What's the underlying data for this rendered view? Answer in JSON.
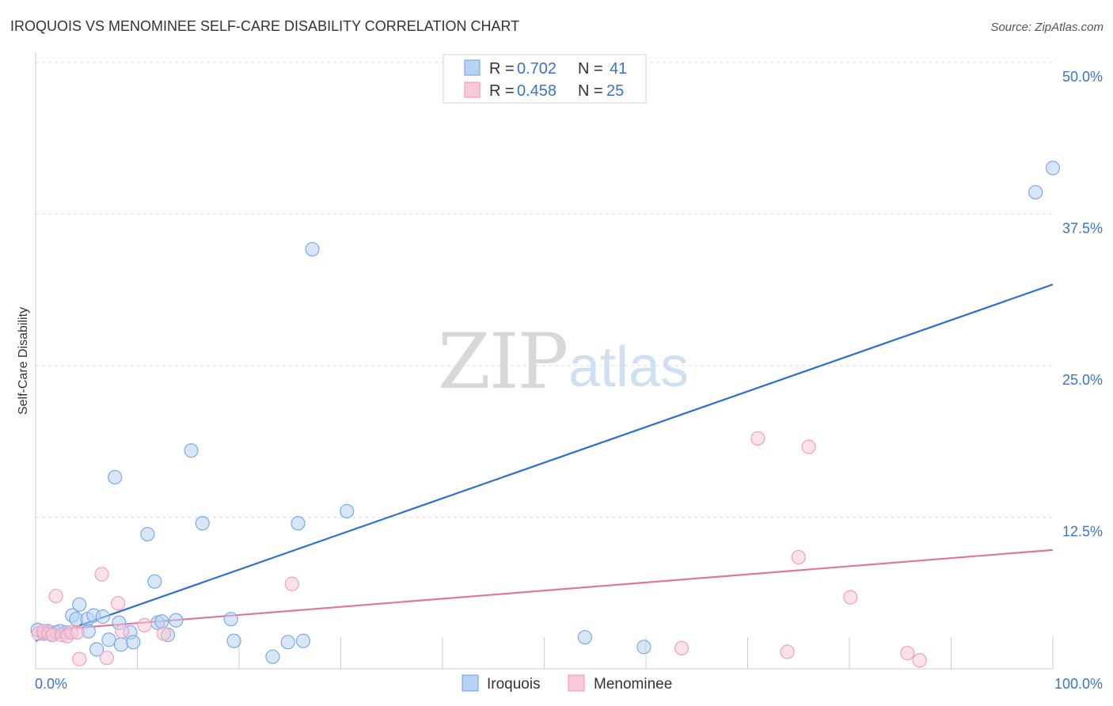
{
  "title": "IROQUOIS VS MENOMINEE SELF-CARE DISABILITY CORRELATION CHART",
  "source": "Source: ZipAtlas.com",
  "watermark": {
    "zip": "ZIP",
    "atlas": "atlas"
  },
  "chart_data": {
    "type": "scatter",
    "title": "IROQUOIS VS MENOMINEE SELF-CARE DISABILITY CORRELATION CHART",
    "ylabel": "Self-Care Disability",
    "xlabel": "",
    "xlim": [
      0,
      100
    ],
    "ylim": [
      0,
      50
    ],
    "x_tick_labels": [
      "0.0%",
      "100.0%"
    ],
    "y_ticks": [
      12.5,
      25.0,
      37.5,
      50.0
    ],
    "y_tick_labels": [
      "12.5%",
      "25.0%",
      "37.5%",
      "50.0%"
    ],
    "grid": "horizontal-dashed",
    "legend_top": {
      "placement": "top-center",
      "rows": [
        {
          "r_label": "R = ",
          "r_value": "0.702",
          "n_label": "N = ",
          "n_value": "41"
        },
        {
          "r_label": "R = ",
          "r_value": "0.458",
          "n_label": "N = ",
          "n_value": "25"
        }
      ]
    },
    "series": [
      {
        "name": "Iroquois",
        "color": "#7aaae8",
        "fill": "#b8d2f3",
        "line_color": "#2d6fd1",
        "trend": {
          "x": [
            0,
            100
          ],
          "y": [
            2.3,
            31.7
          ]
        },
        "points": [
          [
            0.2,
            3.2
          ],
          [
            0.8,
            2.9
          ],
          [
            1.2,
            3.1
          ],
          [
            1.6,
            2.8
          ],
          [
            2.0,
            3.0
          ],
          [
            2.4,
            3.1
          ],
          [
            3.0,
            3.0
          ],
          [
            3.6,
            4.4
          ],
          [
            4.0,
            4.1
          ],
          [
            4.3,
            5.3
          ],
          [
            5.1,
            4.1
          ],
          [
            5.2,
            3.1
          ],
          [
            5.7,
            4.4
          ],
          [
            6.0,
            1.6
          ],
          [
            6.6,
            4.3
          ],
          [
            7.2,
            2.4
          ],
          [
            7.8,
            15.8
          ],
          [
            8.2,
            3.8
          ],
          [
            8.4,
            2.0
          ],
          [
            9.3,
            3.0
          ],
          [
            9.6,
            2.2
          ],
          [
            11.0,
            11.1
          ],
          [
            11.7,
            7.2
          ],
          [
            12.0,
            3.8
          ],
          [
            12.4,
            3.9
          ],
          [
            13.0,
            2.8
          ],
          [
            13.8,
            4.0
          ],
          [
            15.3,
            18.0
          ],
          [
            16.4,
            12.0
          ],
          [
            19.2,
            4.1
          ],
          [
            19.5,
            2.3
          ],
          [
            23.3,
            1.0
          ],
          [
            24.8,
            2.2
          ],
          [
            25.8,
            12.0
          ],
          [
            26.3,
            2.3
          ],
          [
            27.2,
            34.6
          ],
          [
            30.6,
            13.0
          ],
          [
            54.0,
            2.6
          ],
          [
            59.8,
            1.8
          ],
          [
            98.3,
            39.3
          ],
          [
            100.0,
            41.3
          ]
        ]
      },
      {
        "name": "Menominee",
        "color": "#f0a1ba",
        "fill": "#f8c9d7",
        "line_color": "#e0769c",
        "trend": {
          "x": [
            0,
            100
          ],
          "y": [
            3.1,
            9.8
          ]
        },
        "points": [
          [
            0.3,
            2.9
          ],
          [
            0.8,
            3.1
          ],
          [
            1.3,
            2.9
          ],
          [
            1.7,
            2.8
          ],
          [
            2.0,
            6.0
          ],
          [
            2.6,
            2.8
          ],
          [
            3.1,
            2.7
          ],
          [
            3.5,
            3.0
          ],
          [
            4.1,
            3.0
          ],
          [
            4.3,
            0.8
          ],
          [
            6.5,
            7.8
          ],
          [
            7.0,
            0.9
          ],
          [
            8.1,
            5.4
          ],
          [
            8.5,
            3.1
          ],
          [
            10.7,
            3.6
          ],
          [
            12.6,
            2.9
          ],
          [
            25.2,
            7.0
          ],
          [
            63.5,
            1.7
          ],
          [
            71.0,
            19.0
          ],
          [
            73.9,
            1.4
          ],
          [
            75.0,
            9.2
          ],
          [
            76.0,
            18.3
          ],
          [
            80.1,
            5.9
          ],
          [
            85.7,
            1.3
          ],
          [
            86.9,
            0.7
          ]
        ]
      }
    ]
  }
}
